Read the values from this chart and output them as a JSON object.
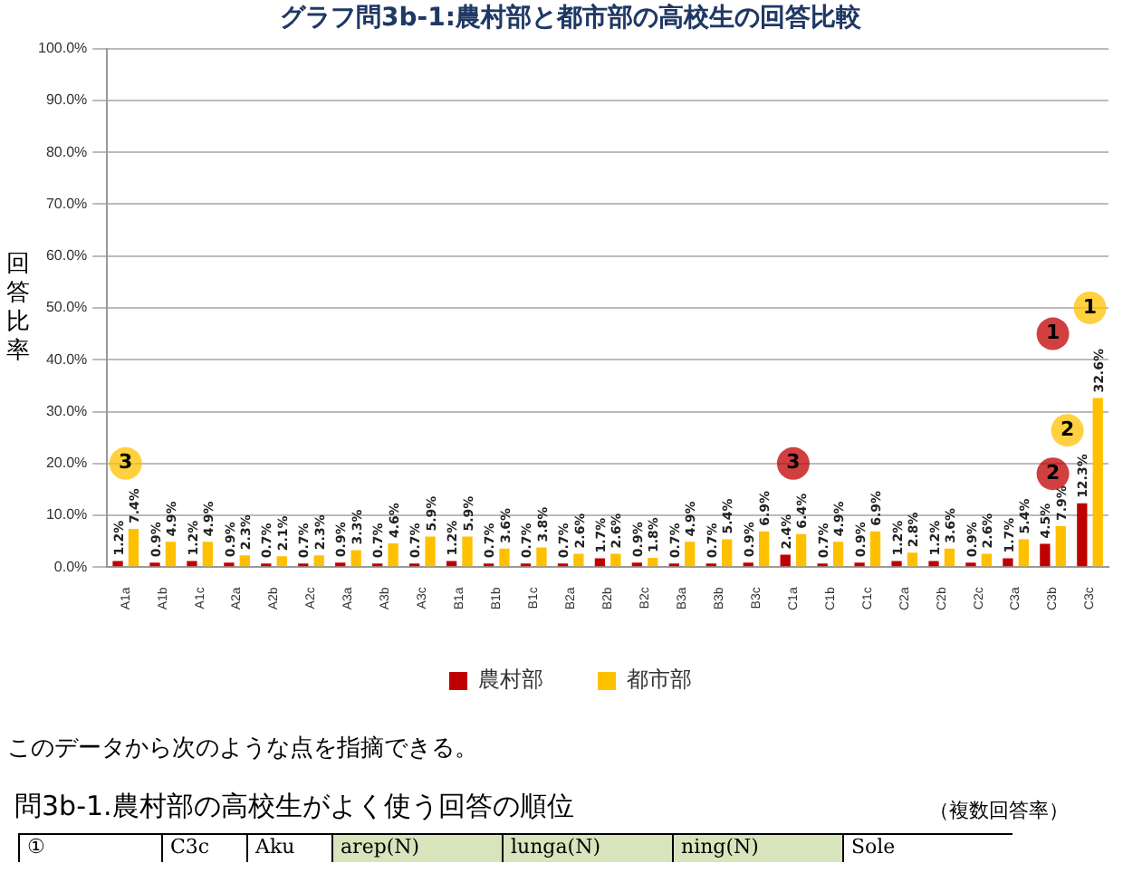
{
  "chart_data": {
    "type": "bar",
    "title": "グラフ問3b-1:農村部と都市部の高校生の回答比較",
    "ylabel": "回答比率",
    "categories": [
      "A1a",
      "A1b",
      "A1c",
      "A2a",
      "A2b",
      "A2c",
      "A3a",
      "A3b",
      "A3c",
      "B1a",
      "B1b",
      "B1c",
      "B2a",
      "B2b",
      "B2c",
      "B3a",
      "B3b",
      "B3c",
      "C1a",
      "C1b",
      "C1c",
      "C2a",
      "C2b",
      "C2c",
      "C3a",
      "C3b",
      "C3c"
    ],
    "series": [
      {
        "name": "農村部",
        "color": "#c00000",
        "values": [
          1.2,
          0.9,
          1.2,
          0.9,
          0.7,
          0.7,
          0.9,
          0.7,
          0.7,
          1.2,
          0.7,
          0.7,
          0.7,
          1.7,
          0.9,
          0.7,
          0.7,
          0.9,
          2.4,
          0.7,
          0.9,
          1.2,
          1.2,
          0.9,
          1.7,
          4.5,
          12.3
        ],
        "value_labels": [
          "1.2%",
          "0.9%",
          "1.2%",
          "0.9%",
          "0.7%",
          "0.7%",
          "0.9%",
          "0.7%",
          "0.7%",
          "1.2%",
          "0.7%",
          "0.7%",
          "0.7%",
          "1.7%",
          "0.9%",
          "0.7%",
          "0.7%",
          "0.9%",
          "2.4%",
          "0.7%",
          "0.9%",
          "1.2%",
          "1.2%",
          "0.9%",
          "1.7%",
          "4.5%",
          "12.3%"
        ]
      },
      {
        "name": "都市部",
        "color": "#ffc000",
        "values": [
          7.4,
          4.9,
          4.9,
          2.3,
          2.1,
          2.3,
          3.3,
          4.6,
          5.9,
          5.9,
          3.6,
          3.8,
          2.6,
          2.6,
          1.8,
          4.9,
          5.4,
          6.9,
          6.4,
          4.9,
          6.9,
          2.8,
          3.6,
          2.6,
          5.4,
          7.9,
          32.6
        ],
        "value_labels": [
          "7.4%",
          "4.9%",
          "4.9%",
          "2.3%",
          "2.1%",
          "2.3%",
          "3.3%",
          "4.6%",
          "5.9%",
          "5.9%",
          "3.6%",
          "3.8%",
          "2.6%",
          "2.6%",
          "1.8%",
          "4.9%",
          "5.4%",
          "6.9%",
          "6.4%",
          "4.9%",
          "6.9%",
          "2.8%",
          "3.6%",
          "2.6%",
          "5.4%",
          "7.9%",
          "32.6%"
        ]
      }
    ],
    "ylim": [
      0,
      100
    ],
    "yticks": [
      {
        "value": 0,
        "label": "0.0%"
      },
      {
        "value": 10,
        "label": "10.0%"
      },
      {
        "value": 20,
        "label": "20.0%"
      },
      {
        "value": 30,
        "label": "30.0%"
      },
      {
        "value": 40,
        "label": "40.0%"
      },
      {
        "value": 50,
        "label": "50.0%"
      },
      {
        "value": 60,
        "label": "60.0%"
      },
      {
        "value": 70,
        "label": "70.0%"
      },
      {
        "value": 80,
        "label": "80.0%"
      },
      {
        "value": 90,
        "label": "90.0%"
      },
      {
        "value": 100,
        "label": "100.0%"
      }
    ],
    "grid": "y",
    "legend": "bottom",
    "annotations": [
      {
        "text": "3",
        "x": "C1a",
        "y": 20
      },
      {
        "text": "3",
        "x": "A1a",
        "y": 20
      },
      {
        "text": "2",
        "x": "C3b",
        "y": 18
      },
      "2",
      {
        "text": "1",
        "x": "C3b",
        "y": 45
      },
      {
        "text": "1",
        "x": "C3c",
        "y": 50
      },
      "このデータから次のような点を指摘できる。",
      "問3b-1.農村部の高校生がよく使う回答の順位",
      "（複数回答率）",
      "①",
      "C3c",
      "Aku",
      "arep(N)",
      "lunga(N)",
      "ning(N)",
      "Sole"
    ]
  }
}
